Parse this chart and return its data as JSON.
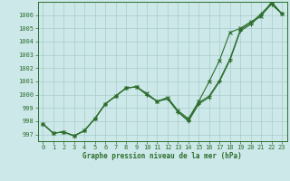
{
  "title": "Graphe pression niveau de la mer (hPa)",
  "background_color": "#cce8e8",
  "grid_color": "#aacccc",
  "line_color": "#2d6e2d",
  "xlim": [
    -0.5,
    23.5
  ],
  "ylim": [
    996.5,
    1007.0
  ],
  "xticks": [
    0,
    1,
    2,
    3,
    4,
    5,
    6,
    7,
    8,
    9,
    10,
    11,
    12,
    13,
    14,
    15,
    16,
    17,
    18,
    19,
    20,
    21,
    22,
    23
  ],
  "yticks": [
    997,
    998,
    999,
    1000,
    1001,
    1002,
    1003,
    1004,
    1005,
    1006
  ],
  "series1": [
    997.8,
    997.1,
    997.2,
    996.9,
    997.3,
    998.2,
    999.3,
    999.9,
    1000.5,
    1000.6,
    1000.0,
    999.5,
    999.7,
    998.7,
    998.1,
    999.4,
    999.9,
    1001.1,
    1002.7,
    1004.9,
    1005.4,
    1006.1,
    1006.9,
    1006.1
  ],
  "series2": [
    997.8,
    997.1,
    997.2,
    996.9,
    997.3,
    998.2,
    999.3,
    999.9,
    1000.5,
    1000.6,
    1000.1,
    999.5,
    999.8,
    998.8,
    998.2,
    999.5,
    1001.0,
    1002.6,
    1004.7,
    1005.0,
    1005.5,
    1005.9,
    1007.0,
    1006.1
  ],
  "series3": [
    997.8,
    997.1,
    997.2,
    996.9,
    997.3,
    998.2,
    999.3,
    999.9,
    1000.5,
    1000.6,
    1000.0,
    999.5,
    999.7,
    998.7,
    998.0,
    999.3,
    999.8,
    1001.0,
    1002.6,
    1004.8,
    1005.3,
    1006.0,
    1006.8,
    1006.1
  ],
  "figwidth": 3.2,
  "figheight": 2.0,
  "dpi": 100
}
